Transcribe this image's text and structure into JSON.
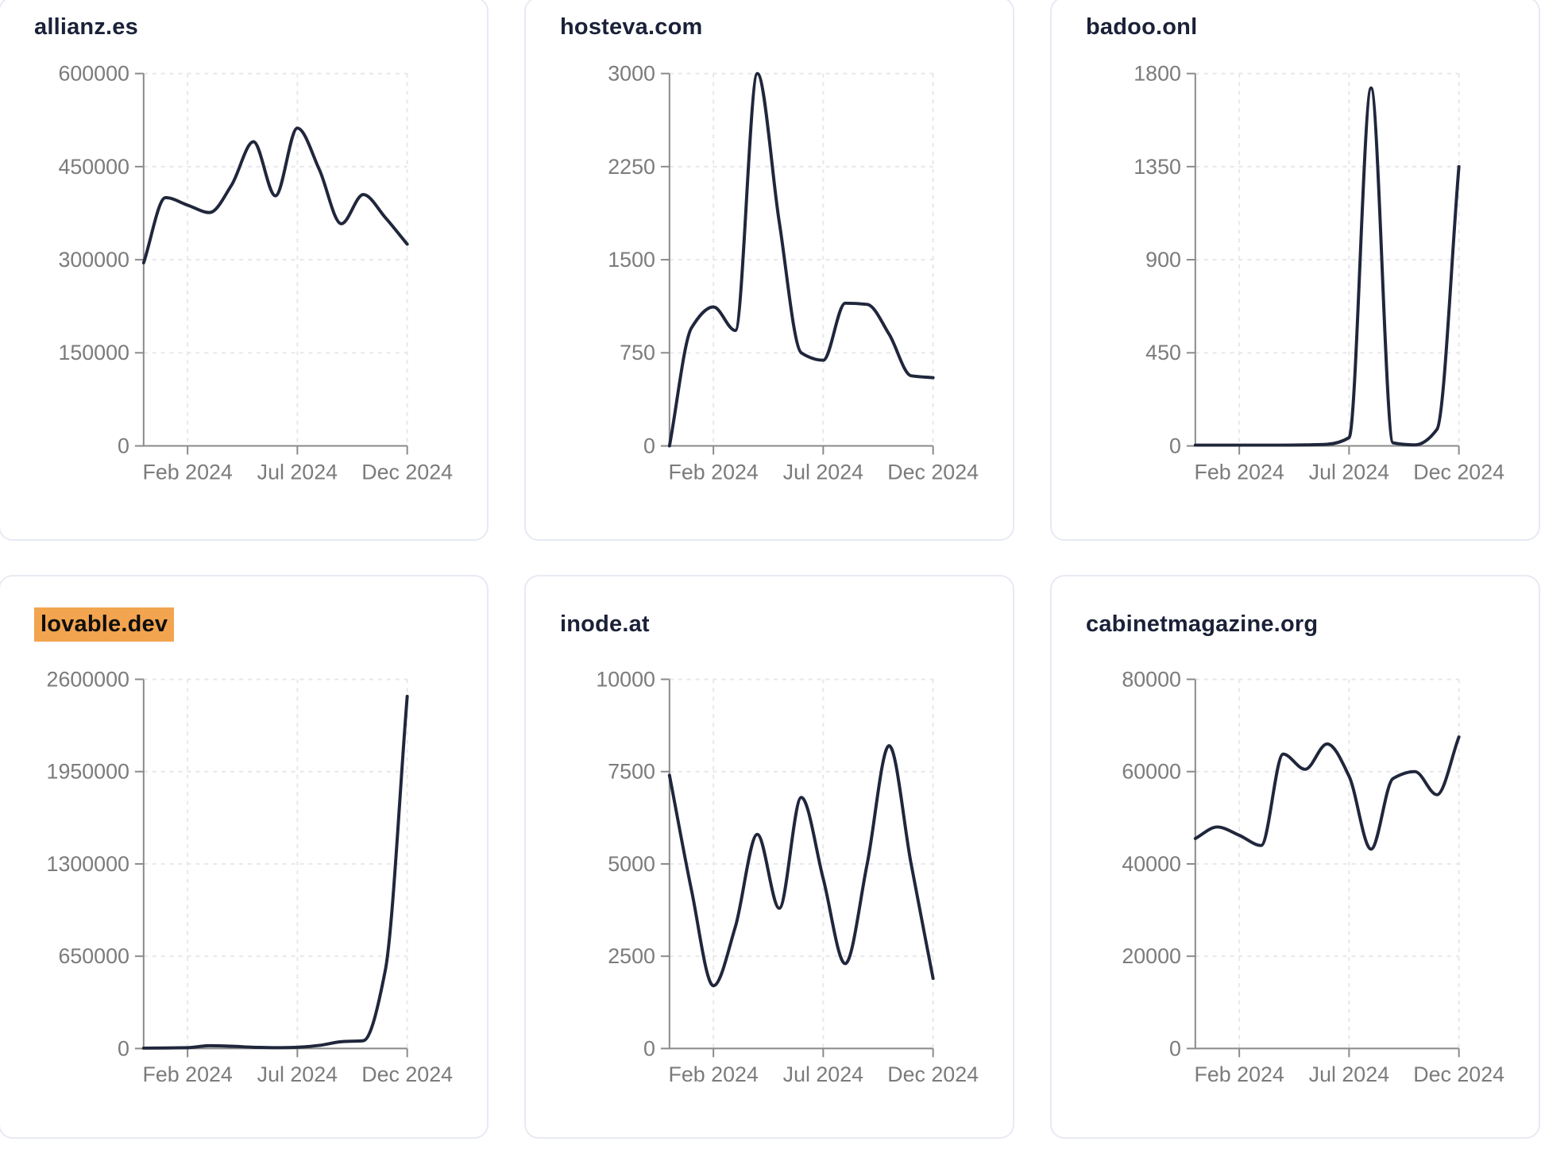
{
  "style": {
    "series_line_color": "#20273c",
    "title_color": "#1a2138",
    "axis_color": "#8a8a8a",
    "tick_label_color": "#7b7b7b",
    "grid_color": "#e7e7ea",
    "card_border_color": "#e7eaf3",
    "highlight_color": "#f2a44f",
    "highlight_text_color": "#0f0f0f"
  },
  "chart_data": [
    {
      "type": "line",
      "title": "allianz.es",
      "highlighted": false,
      "x_tick_labels": [
        "Feb 2024",
        "Jul 2024",
        "Dec 2024"
      ],
      "x_tick_positions": [
        2,
        7,
        12
      ],
      "x_points": 13,
      "y_ticks": [
        0,
        150000,
        300000,
        450000,
        600000
      ],
      "ylim": [
        0,
        600000
      ],
      "grid": "dashed",
      "legend": "none",
      "values": [
        295000,
        400000,
        388000,
        376000,
        420000,
        490000,
        403000,
        512000,
        445000,
        358000,
        405000,
        368000,
        325000
      ]
    },
    {
      "type": "line",
      "title": "hosteva.com",
      "highlighted": false,
      "x_tick_labels": [
        "Feb 2024",
        "Jul 2024",
        "Dec 2024"
      ],
      "x_tick_positions": [
        2,
        7,
        12
      ],
      "x_points": 13,
      "y_ticks": [
        0,
        750,
        1500,
        2250,
        3000
      ],
      "ylim": [
        0,
        3000
      ],
      "grid": "dashed",
      "legend": "none",
      "values": [
        0,
        950,
        1120,
        930,
        3000,
        1800,
        750,
        690,
        1150,
        1140,
        900,
        565,
        550
      ]
    },
    {
      "type": "line",
      "title": "badoo.onl",
      "highlighted": false,
      "x_tick_labels": [
        "Feb 2024",
        "Jul 2024",
        "Dec 2024"
      ],
      "x_tick_positions": [
        2,
        7,
        12
      ],
      "x_points": 13,
      "y_ticks": [
        0,
        450,
        900,
        1350,
        1800
      ],
      "ylim": [
        0,
        1800
      ],
      "grid": "dashed",
      "legend": "none",
      "values": [
        4,
        4,
        4,
        4,
        4,
        5,
        8,
        40,
        1730,
        15,
        5,
        80,
        1350
      ]
    },
    {
      "type": "line",
      "title": "lovable.dev",
      "highlighted": true,
      "x_tick_labels": [
        "Feb 2024",
        "Jul 2024",
        "Dec 2024"
      ],
      "x_tick_positions": [
        2,
        7,
        12
      ],
      "x_points": 13,
      "y_ticks": [
        0,
        650000,
        1300000,
        1950000,
        2600000
      ],
      "ylim": [
        0,
        2600000
      ],
      "grid": "dashed",
      "legend": "none",
      "values": [
        3000,
        4000,
        6000,
        20000,
        16000,
        9000,
        6000,
        9000,
        22000,
        48000,
        55000,
        550000,
        2480000
      ]
    },
    {
      "type": "line",
      "title": "inode.at",
      "highlighted": false,
      "x_tick_labels": [
        "Feb 2024",
        "Jul 2024",
        "Dec 2024"
      ],
      "x_tick_positions": [
        2,
        7,
        12
      ],
      "x_points": 13,
      "y_ticks": [
        0,
        2500,
        5000,
        7500,
        10000
      ],
      "ylim": [
        0,
        10000
      ],
      "grid": "dashed",
      "legend": "none",
      "values": [
        7400,
        4300,
        1700,
        3300,
        5800,
        3800,
        6800,
        4600,
        2300,
        5000,
        8200,
        5000,
        1900
      ]
    },
    {
      "type": "line",
      "title": "cabinetmagazine.org",
      "highlighted": false,
      "x_tick_labels": [
        "Feb 2024",
        "Jul 2024",
        "Dec 2024"
      ],
      "x_tick_positions": [
        2,
        7,
        12
      ],
      "x_points": 13,
      "y_ticks": [
        0,
        20000,
        40000,
        60000,
        80000
      ],
      "ylim": [
        0,
        80000
      ],
      "grid": "dashed",
      "legend": "none",
      "values": [
        45500,
        48000,
        46200,
        44000,
        63800,
        60500,
        66000,
        59000,
        43200,
        58500,
        60000,
        55000,
        67500
      ]
    }
  ]
}
